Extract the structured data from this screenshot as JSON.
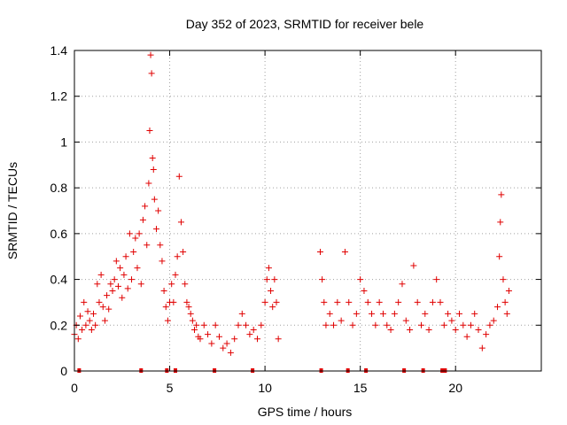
{
  "chart_data": {
    "type": "scatter",
    "title": "Day 352 of 2023, SRMTID for receiver bele",
    "xlabel": "GPS time / hours",
    "ylabel": "SRMTID / TECUs",
    "xlim": [
      0,
      24.5
    ],
    "ylim": [
      0,
      1.4
    ],
    "x_ticks": [
      0,
      5,
      10,
      15,
      20
    ],
    "y_ticks": [
      0,
      0.2,
      0.4,
      0.6,
      0.8,
      1,
      1.2,
      1.4
    ],
    "x_tick_labels": [
      "0",
      "5",
      "10",
      "15",
      "20"
    ],
    "y_tick_labels": [
      "0",
      "0.2",
      "0.4",
      "0.6",
      "0.8",
      "1",
      "1.2",
      "1.4"
    ],
    "grid": true,
    "marker": "+",
    "color": "#e00000",
    "series": [
      {
        "name": "SRMTID",
        "points": [
          [
            0.0,
            0.16
          ],
          [
            0.1,
            0.2
          ],
          [
            0.2,
            0.14
          ],
          [
            0.3,
            0.24
          ],
          [
            0.4,
            0.18
          ],
          [
            0.5,
            0.3
          ],
          [
            0.6,
            0.2
          ],
          [
            0.7,
            0.26
          ],
          [
            0.8,
            0.22
          ],
          [
            0.9,
            0.18
          ],
          [
            1.0,
            0.25
          ],
          [
            1.1,
            0.2
          ],
          [
            1.2,
            0.38
          ],
          [
            1.3,
            0.3
          ],
          [
            1.4,
            0.42
          ],
          [
            1.5,
            0.28
          ],
          [
            1.6,
            0.22
          ],
          [
            1.7,
            0.33
          ],
          [
            1.8,
            0.27
          ],
          [
            1.9,
            0.38
          ],
          [
            2.0,
            0.35
          ],
          [
            2.1,
            0.4
          ],
          [
            2.2,
            0.48
          ],
          [
            2.3,
            0.37
          ],
          [
            2.4,
            0.45
          ],
          [
            2.5,
            0.32
          ],
          [
            2.6,
            0.42
          ],
          [
            2.7,
            0.5
          ],
          [
            2.8,
            0.36
          ],
          [
            2.9,
            0.6
          ],
          [
            3.0,
            0.4
          ],
          [
            3.1,
            0.52
          ],
          [
            3.2,
            0.58
          ],
          [
            3.3,
            0.45
          ],
          [
            3.4,
            0.6
          ],
          [
            3.5,
            0.38
          ],
          [
            3.6,
            0.66
          ],
          [
            3.7,
            0.72
          ],
          [
            3.8,
            0.55
          ],
          [
            3.9,
            0.82
          ],
          [
            3.95,
            1.05
          ],
          [
            4.0,
            1.38
          ],
          [
            4.05,
            1.3
          ],
          [
            4.1,
            0.93
          ],
          [
            4.15,
            0.88
          ],
          [
            4.2,
            0.75
          ],
          [
            4.3,
            0.62
          ],
          [
            4.4,
            0.7
          ],
          [
            4.5,
            0.55
          ],
          [
            4.6,
            0.48
          ],
          [
            4.7,
            0.35
          ],
          [
            4.8,
            0.28
          ],
          [
            4.9,
            0.22
          ],
          [
            5.0,
            0.3
          ],
          [
            5.1,
            0.38
          ],
          [
            5.2,
            0.3
          ],
          [
            5.3,
            0.42
          ],
          [
            5.4,
            0.5
          ],
          [
            5.5,
            0.85
          ],
          [
            5.6,
            0.65
          ],
          [
            5.7,
            0.52
          ],
          [
            5.8,
            0.38
          ],
          [
            5.9,
            0.3
          ],
          [
            6.0,
            0.28
          ],
          [
            6.1,
            0.25
          ],
          [
            6.2,
            0.22
          ],
          [
            6.3,
            0.18
          ],
          [
            6.4,
            0.2
          ],
          [
            6.5,
            0.15
          ],
          [
            6.6,
            0.14
          ],
          [
            6.8,
            0.2
          ],
          [
            7.0,
            0.16
          ],
          [
            7.2,
            0.12
          ],
          [
            7.4,
            0.2
          ],
          [
            7.6,
            0.15
          ],
          [
            7.8,
            0.1
          ],
          [
            8.0,
            0.12
          ],
          [
            8.2,
            0.08
          ],
          [
            8.4,
            0.14
          ],
          [
            8.6,
            0.2
          ],
          [
            8.8,
            0.25
          ],
          [
            9.0,
            0.2
          ],
          [
            9.2,
            0.16
          ],
          [
            9.4,
            0.18
          ],
          [
            9.6,
            0.14
          ],
          [
            9.8,
            0.2
          ],
          [
            10.0,
            0.3
          ],
          [
            10.1,
            0.4
          ],
          [
            10.2,
            0.45
          ],
          [
            10.3,
            0.35
          ],
          [
            10.4,
            0.28
          ],
          [
            10.5,
            0.4
          ],
          [
            10.6,
            0.3
          ],
          [
            10.7,
            0.14
          ],
          [
            12.9,
            0.52
          ],
          [
            13.0,
            0.4
          ],
          [
            13.1,
            0.3
          ],
          [
            13.2,
            0.2
          ],
          [
            13.4,
            0.25
          ],
          [
            13.6,
            0.2
          ],
          [
            13.8,
            0.3
          ],
          [
            14.0,
            0.22
          ],
          [
            14.2,
            0.52
          ],
          [
            14.4,
            0.3
          ],
          [
            14.6,
            0.2
          ],
          [
            14.8,
            0.25
          ],
          [
            15.0,
            0.4
          ],
          [
            15.2,
            0.35
          ],
          [
            15.4,
            0.3
          ],
          [
            15.6,
            0.25
          ],
          [
            15.8,
            0.2
          ],
          [
            16.0,
            0.3
          ],
          [
            16.2,
            0.25
          ],
          [
            16.4,
            0.2
          ],
          [
            16.6,
            0.18
          ],
          [
            16.8,
            0.25
          ],
          [
            17.0,
            0.3
          ],
          [
            17.2,
            0.38
          ],
          [
            17.4,
            0.22
          ],
          [
            17.6,
            0.18
          ],
          [
            17.8,
            0.46
          ],
          [
            18.0,
            0.3
          ],
          [
            18.2,
            0.2
          ],
          [
            18.4,
            0.25
          ],
          [
            18.6,
            0.18
          ],
          [
            18.8,
            0.3
          ],
          [
            19.0,
            0.4
          ],
          [
            19.2,
            0.3
          ],
          [
            19.4,
            0.2
          ],
          [
            19.6,
            0.25
          ],
          [
            19.8,
            0.22
          ],
          [
            20.0,
            0.18
          ],
          [
            20.2,
            0.25
          ],
          [
            20.4,
            0.2
          ],
          [
            20.6,
            0.15
          ],
          [
            20.8,
            0.2
          ],
          [
            21.0,
            0.25
          ],
          [
            21.2,
            0.18
          ],
          [
            21.4,
            0.1
          ],
          [
            21.6,
            0.16
          ],
          [
            21.8,
            0.2
          ],
          [
            22.0,
            0.22
          ],
          [
            22.2,
            0.28
          ],
          [
            22.3,
            0.5
          ],
          [
            22.35,
            0.65
          ],
          [
            22.4,
            0.77
          ],
          [
            22.5,
            0.4
          ],
          [
            22.6,
            0.3
          ],
          [
            22.7,
            0.25
          ],
          [
            22.8,
            0.35
          ]
        ]
      }
    ],
    "outage_marks_x": [
      0.25,
      3.5,
      4.85,
      5.3,
      7.35,
      9.35,
      12.95,
      14.35,
      15.3,
      17.3,
      18.3,
      19.3,
      19.45
    ]
  }
}
